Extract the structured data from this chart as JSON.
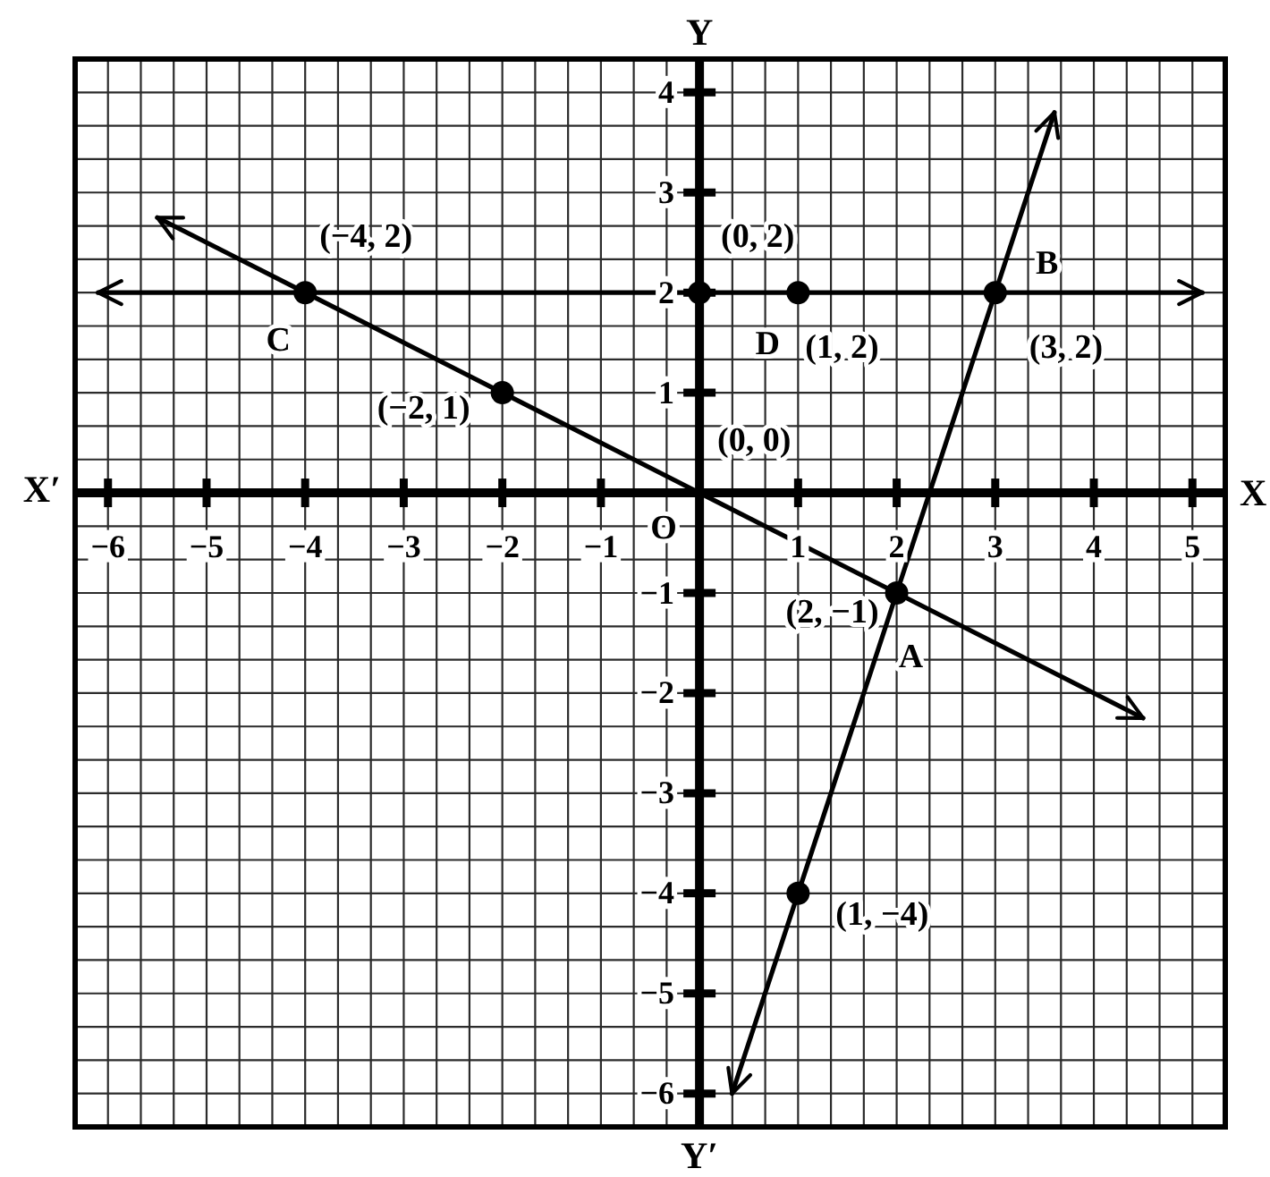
{
  "chart_data": {
    "type": "line",
    "xlabel": "X",
    "ylabel": "Y",
    "xlim": [
      -6.3333,
      5.3333
    ],
    "ylim": [
      -6.3333,
      4.3333
    ],
    "grid": true,
    "xticks": [
      {
        "value": -6.3333,
        "label": null
      },
      -6,
      {
        "value": -5.6667,
        "label": null
      },
      {
        "value": -5.3333,
        "label": null
      },
      -5,
      {
        "value": -4.6667,
        "label": null
      },
      {
        "value": -4.3333,
        "label": null
      },
      -4,
      {
        "value": -3.6667,
        "label": null
      },
      {
        "value": -3.3333,
        "label": null
      },
      -3,
      {
        "value": -2.6667,
        "label": null
      },
      {
        "value": -2.3333,
        "label": null
      },
      -2,
      {
        "value": -1.6667,
        "label": null
      },
      {
        "value": -1.3333,
        "label": null
      },
      -1,
      {
        "value": -0.6667,
        "label": null
      },
      {
        "value": -0.3333,
        "label": null
      },
      {
        "value": 0,
        "label": null
      },
      {
        "value": 0.3333,
        "label": null
      },
      {
        "value": 0.6667,
        "label": null
      },
      1,
      {
        "value": 1.3333,
        "label": null
      },
      {
        "value": 1.6667,
        "label": null
      },
      2,
      {
        "value": 2.3333,
        "label": null
      },
      {
        "value": 2.6667,
        "label": null
      },
      3,
      {
        "value": 3.3333,
        "label": null
      },
      {
        "value": 3.6667,
        "label": null
      },
      4,
      {
        "value": 4.3333,
        "label": null
      },
      {
        "value": 4.6667,
        "label": null
      },
      5,
      {
        "value": 5.3333,
        "label": null
      }
    ],
    "yticks": [
      {
        "value": -6.3333,
        "label": null
      },
      -6,
      {
        "value": -5.6667,
        "label": null
      },
      {
        "value": -5.3333,
        "label": null
      },
      -5,
      {
        "value": -4.6667,
        "label": null
      },
      {
        "value": -4.3333,
        "label": null
      },
      -4,
      {
        "value": -3.6667,
        "label": null
      },
      {
        "value": -3.3333,
        "label": null
      },
      -3,
      {
        "value": -2.6667,
        "label": null
      },
      {
        "value": -2.3333,
        "label": null
      },
      -2,
      {
        "value": -1.6667,
        "label": null
      },
      {
        "value": -1.3333,
        "label": null
      },
      -1,
      {
        "value": -0.6667,
        "label": null
      },
      {
        "value": -0.3333,
        "label": null
      },
      {
        "value": 0,
        "label": null
      },
      {
        "value": 0.3333,
        "label": null
      },
      {
        "value": 0.6667,
        "label": null
      },
      1,
      {
        "value": 1.3333,
        "label": null
      },
      {
        "value": 1.6667,
        "label": null
      },
      2,
      {
        "value": 2.3333,
        "label": null
      },
      {
        "value": 2.6667,
        "label": null
      },
      3,
      {
        "value": 3.3333,
        "label": null
      },
      {
        "value": 3.6667,
        "label": null
      },
      4,
      {
        "value": 4.3333,
        "label": null
      }
    ],
    "series": [
      {
        "color": "#000000",
        "x": [
          -5.5,
          -4,
          -2,
          0,
          2,
          4.5
        ],
        "values": [
          2.75,
          2,
          1,
          0,
          -1,
          -2.25
        ]
      },
      {
        "color": "#000000",
        "x": [
          -6.1,
          -4,
          0,
          1,
          3,
          5.1
        ],
        "values": [
          2,
          2,
          2,
          2,
          2,
          2
        ]
      },
      {
        "color": "#000000",
        "x": [
          0.33,
          1,
          2,
          3,
          3.6
        ],
        "values": [
          -6,
          -4,
          -1,
          2,
          3.8
        ]
      },
      {
        "type": "scatter",
        "color": "#000000",
        "marker": "circle",
        "x": [
          -4,
          -2,
          0,
          1,
          3,
          2,
          1
        ],
        "values": [
          2,
          1,
          2,
          2,
          2,
          -1,
          -4
        ]
      }
    ],
    "annotations": [
      {
        "text": "(−4, 2)",
        "x": -4,
        "y": 2
      },
      {
        "text": "C",
        "x": -4,
        "y": 2
      },
      {
        "text": "(−2, 1)",
        "x": -2,
        "y": 1
      },
      {
        "text": "(0, 2)",
        "x": 0,
        "y": 2
      },
      {
        "text": "D",
        "x": 1,
        "y": 2
      },
      {
        "text": "(1, 2)",
        "x": 1,
        "y": 2
      },
      {
        "text": "B",
        "x": 3,
        "y": 2
      },
      {
        "text": "(3, 2)",
        "x": 3,
        "y": 2
      },
      {
        "text": "(0, 0)",
        "x": 0,
        "y": 0
      },
      {
        "text": "O",
        "x": 0,
        "y": 0
      },
      {
        "text": "(2, −1)",
        "x": 2,
        "y": -1
      },
      {
        "text": "A",
        "x": 2,
        "y": -1
      },
      {
        "text": "(1, −4)",
        "x": 1,
        "y": -4
      },
      "X′",
      "Y′"
    ]
  }
}
